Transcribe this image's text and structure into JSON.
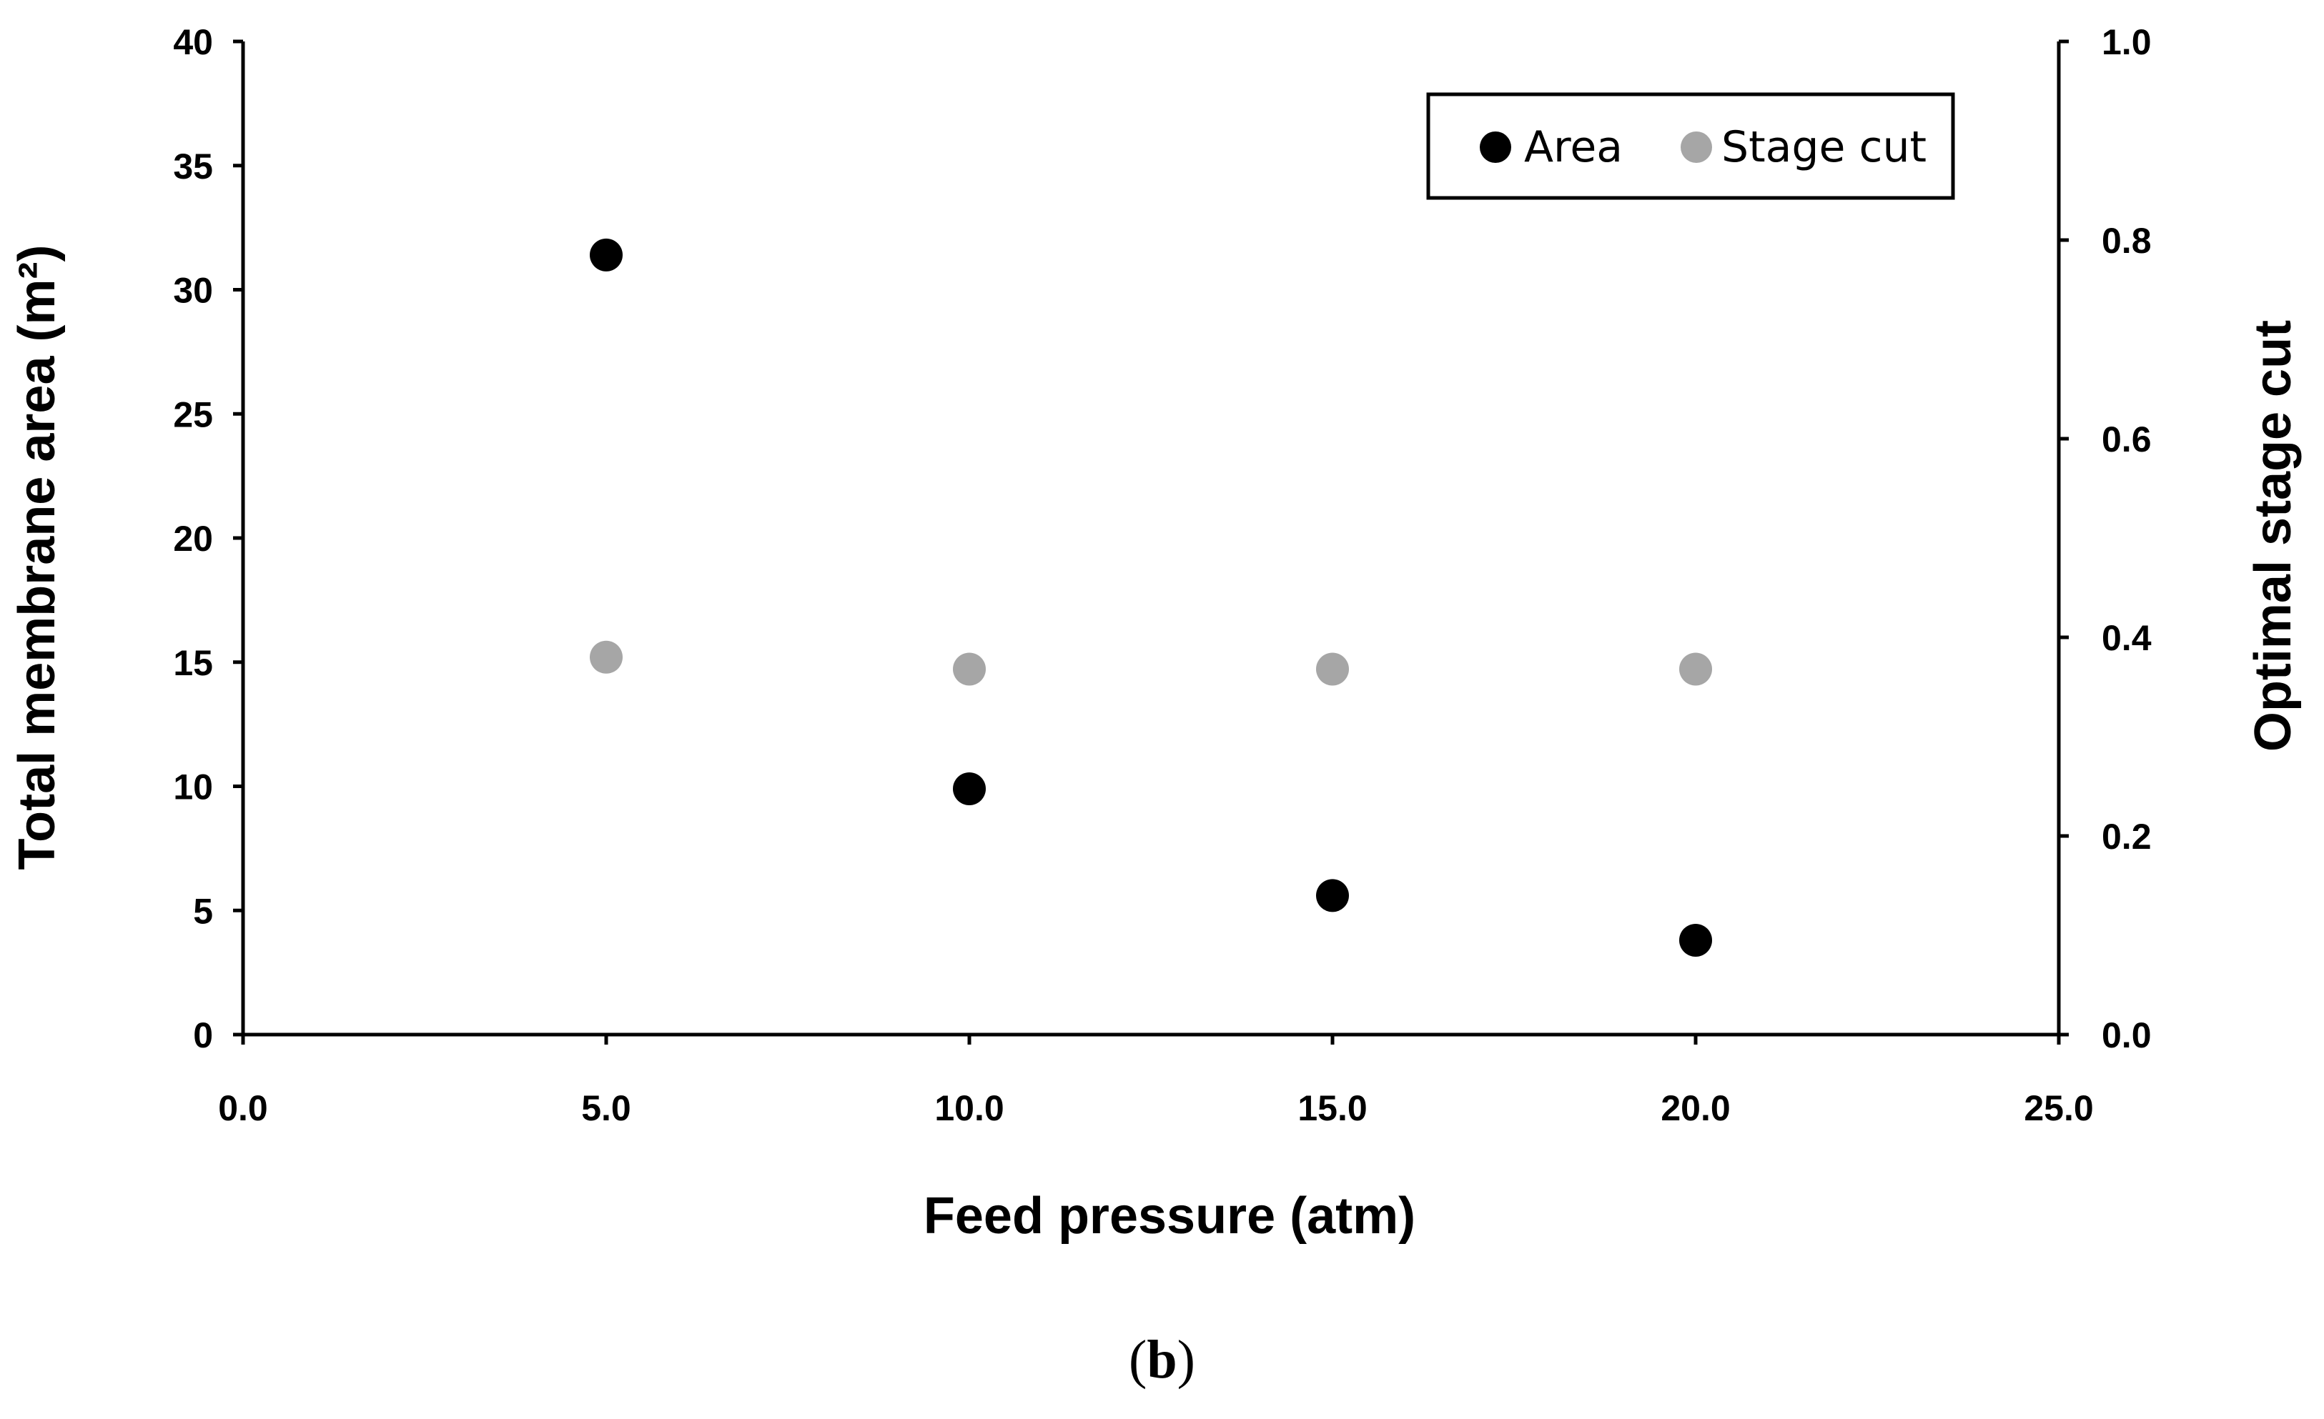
{
  "chart_data": {
    "type": "scatter",
    "caption_open": "(",
    "caption_label": "b",
    "caption_close": ")",
    "xlabel": "Feed pressure (atm)",
    "ylabel": "Total membrane area (m²)",
    "y2label": "Optimal stage cut",
    "xlim": [
      0,
      25
    ],
    "ylim": [
      0,
      40
    ],
    "y2lim": [
      0,
      1
    ],
    "xticks": [
      0,
      5,
      10,
      15,
      20,
      25
    ],
    "xtick_labels": [
      "0.0",
      "5.0",
      "10.0",
      "15.0",
      "20.0",
      "25.0"
    ],
    "yticks": [
      0,
      5,
      10,
      15,
      20,
      25,
      30,
      35,
      40
    ],
    "ytick_labels": [
      "0",
      "5",
      "10",
      "15",
      "20",
      "25",
      "30",
      "35",
      "40"
    ],
    "y2ticks": [
      0,
      0.2,
      0.4,
      0.6,
      0.8,
      1.0
    ],
    "y2tick_labels": [
      "0.0",
      "0.2",
      "0.4",
      "0.6",
      "0.8",
      "1.0"
    ],
    "legend_position": "top-right",
    "series": [
      {
        "name": "Area",
        "axis": "left",
        "color": "#000000",
        "x": [
          5,
          10,
          15,
          20
        ],
        "y": [
          31.4,
          9.9,
          5.6,
          3.8
        ]
      },
      {
        "name": "Stage cut",
        "axis": "right",
        "color": "#a6a6a6",
        "x": [
          5,
          10,
          15,
          20
        ],
        "y": [
          0.38,
          0.368,
          0.368,
          0.368
        ]
      }
    ]
  }
}
